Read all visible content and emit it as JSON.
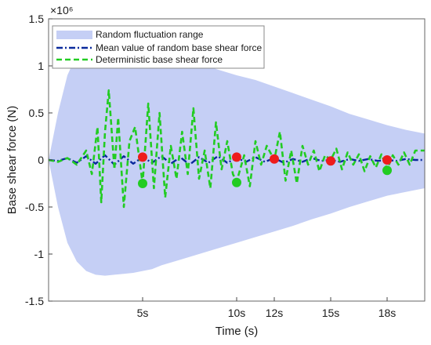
{
  "chart_data": {
    "type": "area",
    "xlabel": "Time (s)",
    "ylabel": "Base shear force (N)",
    "exponent_label": "×10⁶",
    "xlim": [
      0,
      20
    ],
    "ylim": [
      -1.5,
      1.5
    ],
    "x_ticks": [
      5,
      10,
      12,
      15,
      18
    ],
    "x_tick_labels": [
      "5s",
      "10s",
      "12s",
      "15s",
      "18s"
    ],
    "y_ticks": [
      -1.5,
      -1,
      -0.5,
      0,
      0.5,
      1,
      1.5
    ],
    "y_tick_labels": [
      "-1.5",
      "-1",
      "-0.5",
      "0",
      "0.5",
      "1",
      "1.5"
    ],
    "grid": false,
    "legend_position": "top-left",
    "series": [
      {
        "name": "Random fluctuation range",
        "kind": "band",
        "color": "#c5cff5",
        "x": [
          0,
          0.5,
          1,
          1.5,
          2,
          2.5,
          3,
          3.5,
          4,
          4.5,
          5,
          5.5,
          6,
          7,
          8,
          9,
          10,
          11,
          12,
          13,
          14,
          15,
          16,
          17,
          18,
          19,
          20
        ],
        "upper": [
          0,
          0.5,
          0.9,
          1.12,
          1.22,
          1.26,
          1.27,
          1.27,
          1.26,
          1.24,
          1.22,
          1.2,
          1.16,
          1.09,
          1.03,
          0.96,
          0.9,
          0.85,
          0.78,
          0.71,
          0.64,
          0.57,
          0.49,
          0.43,
          0.37,
          0.32,
          0.28
        ],
        "lower": [
          0,
          -0.5,
          -0.88,
          -1.08,
          -1.18,
          -1.22,
          -1.23,
          -1.22,
          -1.21,
          -1.2,
          -1.18,
          -1.16,
          -1.12,
          -1.06,
          -1.0,
          -0.94,
          -0.88,
          -0.82,
          -0.76,
          -0.7,
          -0.63,
          -0.57,
          -0.5,
          -0.44,
          -0.38,
          -0.34,
          -0.3
        ]
      },
      {
        "name": "Mean value of random base shear force",
        "kind": "line",
        "color": "#0a2a9c",
        "dash": "dashdot",
        "x": [
          0,
          0.5,
          1,
          1.5,
          2,
          2.5,
          3,
          3.5,
          4,
          4.5,
          5,
          5.5,
          6,
          6.5,
          7,
          7.5,
          8,
          8.5,
          9,
          9.5,
          10,
          10.5,
          11,
          11.5,
          12,
          12.5,
          13,
          13.5,
          14,
          14.5,
          15,
          15.5,
          16,
          16.5,
          17,
          17.5,
          18,
          18.5,
          19,
          19.5,
          20
        ],
        "y": [
          0,
          -0.01,
          0.02,
          -0.03,
          0.04,
          -0.04,
          0.05,
          -0.05,
          0.04,
          -0.04,
          0.03,
          -0.03,
          0.04,
          -0.04,
          0.03,
          -0.05,
          0.03,
          -0.03,
          0.04,
          -0.03,
          0.02,
          -0.02,
          0.03,
          -0.02,
          0.02,
          -0.03,
          0.01,
          -0.02,
          0.02,
          -0.01,
          0.0,
          -0.02,
          0.01,
          -0.01,
          0.01,
          -0.01,
          0.0,
          -0.01,
          0.01,
          0.0,
          0.0
        ]
      },
      {
        "name": "Deterministic base shear force",
        "kind": "line",
        "color": "#22cc22",
        "dash": "dashed",
        "x": [
          0,
          0.5,
          1,
          1.5,
          2,
          2.3,
          2.6,
          2.8,
          3.0,
          3.2,
          3.5,
          3.7,
          4.0,
          4.3,
          4.6,
          5.0,
          5.3,
          5.6,
          5.9,
          6.2,
          6.5,
          6.8,
          7.1,
          7.4,
          7.7,
          8.0,
          8.3,
          8.6,
          8.9,
          9.2,
          9.5,
          9.8,
          10.0,
          10.4,
          10.7,
          11.0,
          11.3,
          11.6,
          12.0,
          12.3,
          12.6,
          12.9,
          13.2,
          13.5,
          13.8,
          14.1,
          14.4,
          14.7,
          15.0,
          15.3,
          15.6,
          15.9,
          16.2,
          16.5,
          16.8,
          17.1,
          17.4,
          17.7,
          18.0,
          18.3,
          18.6,
          18.9,
          19.2,
          19.5,
          20
        ],
        "y": [
          0,
          -0.02,
          0.02,
          -0.05,
          0.1,
          -0.15,
          0.35,
          -0.45,
          0.3,
          0.74,
          -0.1,
          0.45,
          -0.5,
          0.2,
          0.35,
          -0.25,
          0.6,
          -0.3,
          0.5,
          -0.4,
          0.15,
          -0.2,
          0.3,
          -0.15,
          0.55,
          -0.2,
          0.1,
          -0.3,
          0.4,
          -0.1,
          0.2,
          -0.15,
          -0.23,
          0.05,
          -0.28,
          0.2,
          -0.05,
          0.15,
          0.0,
          0.3,
          -0.22,
          0.1,
          -0.25,
          0.15,
          -0.05,
          0.1,
          -0.12,
          0.05,
          0.0,
          0.12,
          -0.1,
          0.08,
          -0.05,
          0.06,
          -0.12,
          0.04,
          -0.08,
          0.06,
          -0.1,
          0.05,
          -0.05,
          0.08,
          -0.05,
          0.1,
          0.1
        ]
      }
    ],
    "red_markers": {
      "color": "#ee1c1c",
      "x": [
        5,
        10,
        12,
        15,
        18
      ],
      "y": [
        0.03,
        0.03,
        0.01,
        -0.01,
        0.0
      ]
    },
    "green_markers": {
      "color": "#22cc22",
      "x": [
        5,
        10,
        18
      ],
      "y": [
        -0.25,
        -0.24,
        -0.11
      ]
    }
  }
}
